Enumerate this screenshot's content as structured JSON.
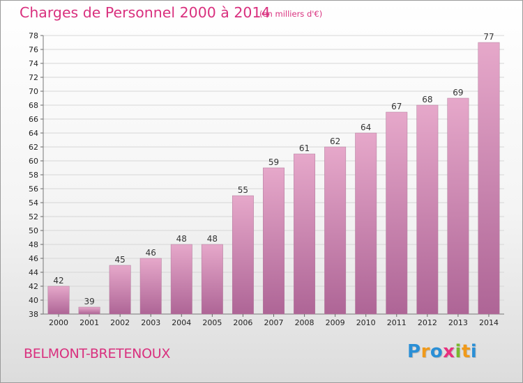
{
  "title": "Charges de Personnel 2000 à 2014",
  "unit_note": "(en milliers d'€)",
  "commune": "BELMONT-BRETENOUX",
  "logo": {
    "text": "Proxiti",
    "letters": [
      {
        "ch": "P",
        "color": "#2a8fd6"
      },
      {
        "ch": "r",
        "color": "#f09a1a"
      },
      {
        "ch": "o",
        "color": "#2a8fd6"
      },
      {
        "ch": "x",
        "color": "#e8307e"
      },
      {
        "ch": "i",
        "color": "#7ab82e"
      },
      {
        "ch": "t",
        "color": "#f09a1a"
      },
      {
        "ch": "i",
        "color": "#2a8fd6"
      }
    ]
  },
  "colors": {
    "bar_top": "#e6a8ca",
    "bar_bottom": "#ae6596",
    "accent": "#d9307e"
  },
  "chart_data": {
    "type": "bar",
    "categories": [
      "2000",
      "2001",
      "2002",
      "2003",
      "2004",
      "2005",
      "2006",
      "2007",
      "2008",
      "2009",
      "2010",
      "2011",
      "2012",
      "2013",
      "2014"
    ],
    "values": [
      42,
      39,
      45,
      46,
      48,
      48,
      55,
      59,
      61,
      62,
      64,
      67,
      68,
      69,
      77
    ],
    "title": "Charges de Personnel 2000 à 2014",
    "subtitle": "(en milliers d'€)",
    "ylim": [
      38,
      78
    ],
    "ytick_step": 2,
    "grid": true,
    "data_labels": true
  }
}
